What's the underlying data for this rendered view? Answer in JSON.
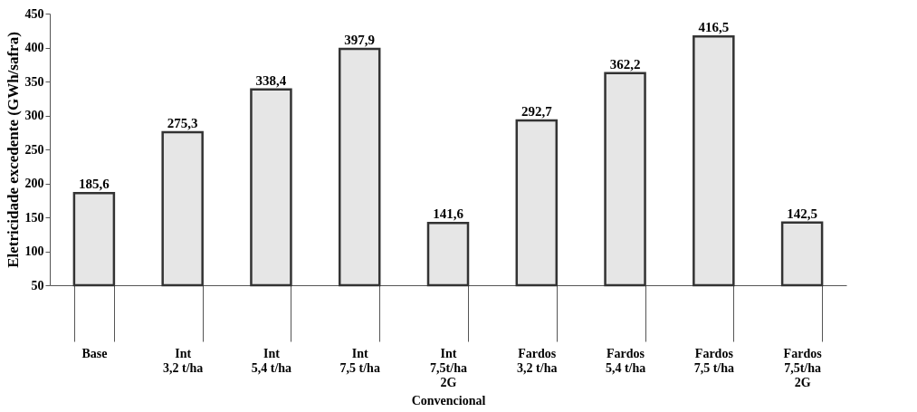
{
  "chart_data": {
    "type": "bar",
    "xlabel": "Convencional",
    "ylabel": "Eletricidade excedente (GWh/safra)",
    "categories": [
      "Base",
      "Int\n3,2 t/ha",
      "Int\n5,4 t/ha",
      "Int\n7,5 t/ha",
      "Int\n7,5t/ha\n2G",
      "Fardos\n3,2 t/ha",
      "Fardos\n5,4 t/ha",
      "Fardos\n7,5 t/ha",
      "Fardos\n7,5t/ha\n2G"
    ],
    "values": [
      185.6,
      275.3,
      338.4,
      397.9,
      141.6,
      292.7,
      362.2,
      416.5,
      142.5
    ],
    "value_labels": [
      "185,6",
      "275,3",
      "338,4",
      "397,9",
      "141,6",
      "292,7",
      "362,2",
      "416,5",
      "142,5"
    ],
    "color": "#e6e6e6",
    "ylim": [
      50,
      450
    ],
    "yticks": [
      50,
      100,
      150,
      200,
      250,
      300,
      350,
      400,
      450
    ],
    "grid": false
  }
}
